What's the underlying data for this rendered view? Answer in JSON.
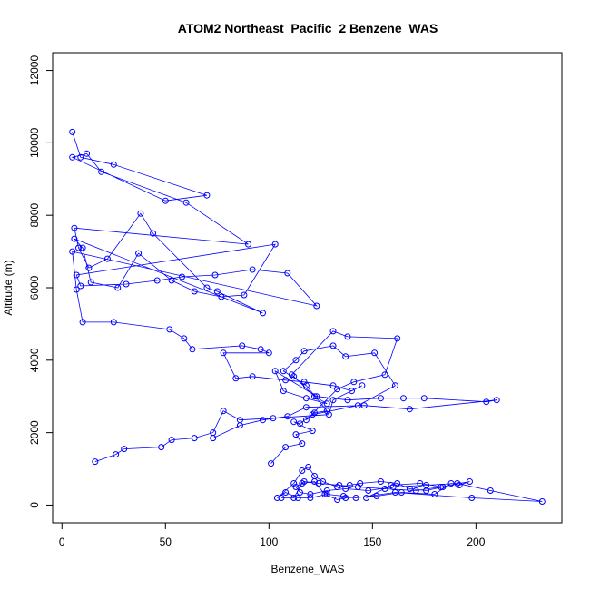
{
  "chart_data": {
    "type": "scatter",
    "title": "ATOM2 Northeast_Pacific_2 Benzene_WAS",
    "xlabel": "Benzene_WAS",
    "ylabel": "Altitude (m)",
    "xlim": [
      0,
      240
    ],
    "ylim": [
      0,
      12000
    ],
    "x_ticks": [
      0,
      50,
      100,
      150,
      200
    ],
    "y_ticks": [
      0,
      2000,
      4000,
      6000,
      8000,
      10000,
      12000
    ],
    "grid": false,
    "legend": "none",
    "color": "#0000ff",
    "series": [
      {
        "x": [
          5,
          9,
          25,
          70,
          50,
          5,
          12,
          19,
          60,
          90,
          6,
          8,
          13,
          22,
          38,
          44,
          70,
          75,
          97,
          6,
          10,
          14,
          27,
          37,
          53,
          64,
          77,
          88,
          103,
          7,
          9,
          31,
          46,
          58,
          74,
          92,
          109,
          123,
          5,
          7,
          10,
          25,
          52,
          59,
          63,
          87,
          96,
          100,
          78,
          84,
          92,
          108,
          117,
          131,
          140,
          145,
          131,
          129,
          102,
          86,
          78,
          73,
          64,
          53,
          48,
          30,
          26,
          16
        ],
        "y": [
          10300,
          9600,
          9400,
          8550,
          8400,
          9600,
          9700,
          9200,
          8350,
          7200,
          7650,
          7100,
          6550,
          6800,
          8050,
          7500,
          6000,
          5900,
          5300,
          7350,
          7100,
          6150,
          6000,
          6950,
          6200,
          5900,
          5750,
          5800,
          7200,
          6350,
          6050,
          6100,
          6200,
          6300,
          6350,
          6500,
          6400,
          5500,
          7000,
          5950,
          5050,
          5050,
          4850,
          4600,
          4300,
          4400,
          4300,
          4200,
          4200,
          3500,
          3550,
          3450,
          3400,
          3300,
          3150,
          3300,
          2900,
          2500,
          2400,
          2350,
          2600,
          2000,
          1850,
          1800,
          1600,
          1550,
          1400,
          1200
        ]
      },
      {
        "x": [
          101,
          108,
          116,
          113,
          121,
          112,
          115,
          122,
          128,
          118,
          107,
          113,
          117,
          131,
          137,
          151,
          161,
          143,
          121,
          118,
          133,
          141,
          156,
          162,
          138,
          131,
          111,
          112,
          122,
          128,
          118,
          107,
          103,
          123,
          138,
          154,
          165,
          175,
          205,
          210,
          168,
          146,
          118,
          109,
          97,
          86,
          73
        ],
        "y": [
          1150,
          1600,
          1700,
          1950,
          2050,
          2300,
          2250,
          2550,
          2600,
          3300,
          3700,
          4000,
          4250,
          4400,
          4100,
          4200,
          3300,
          2750,
          2500,
          2350,
          3200,
          3400,
          3600,
          4600,
          4650,
          4800,
          3600,
          3550,
          3000,
          2800,
          2950,
          3150,
          3700,
          3000,
          2900,
          2950,
          2950,
          2950,
          2850,
          2900,
          2650,
          2750,
          2700,
          2450,
          2350,
          2200,
          1850
        ]
      },
      {
        "x": [
          106,
          112,
          116,
          122,
          127,
          133,
          137,
          152,
          164,
          180,
          188,
          192,
          197,
          183,
          171,
          156,
          143,
          134,
          124,
          117,
          113,
          115,
          120,
          128,
          137,
          148,
          160,
          176,
          191,
          207,
          232,
          198,
          161,
          142,
          136,
          128,
          120,
          114,
          108,
          104,
          112,
          116,
          119,
          122,
          126,
          133,
          139,
          144,
          154,
          162,
          168,
          176,
          184,
          173,
          159,
          147
        ],
        "y": [
          200,
          200,
          600,
          650,
          300,
          150,
          200,
          250,
          350,
          300,
          600,
          550,
          650,
          500,
          400,
          450,
          500,
          550,
          600,
          650,
          500,
          350,
          300,
          400,
          450,
          400,
          500,
          550,
          600,
          400,
          100,
          200,
          350,
          200,
          250,
          300,
          200,
          200,
          350,
          200,
          600,
          950,
          1050,
          800,
          650,
          500,
          550,
          600,
          650,
          600,
          450,
          400,
          500,
          600,
          550,
          200
        ]
      }
    ]
  }
}
